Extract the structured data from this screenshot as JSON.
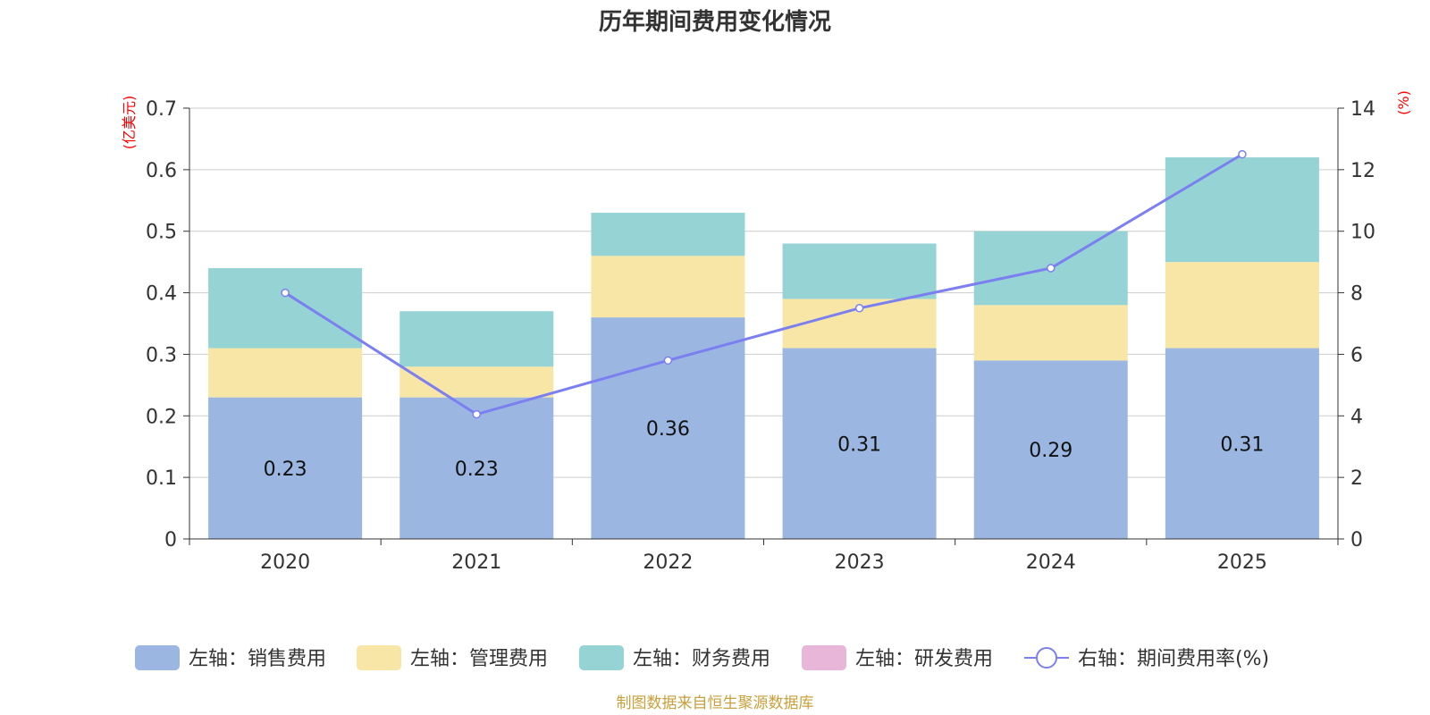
{
  "chart_data": {
    "type": "bar",
    "stacked": true,
    "title": "历年期间费用变化情况",
    "categories": [
      "2020",
      "2021",
      "2022",
      "2023",
      "2024",
      "2025"
    ],
    "left_axis": {
      "unit": "(亿美元)",
      "ylim": [
        0,
        0.7
      ],
      "ticks": [
        "0",
        "0.1",
        "0.2",
        "0.3",
        "0.4",
        "0.5",
        "0.6",
        "0.7"
      ]
    },
    "right_axis": {
      "unit": "(%)",
      "ylim": [
        0,
        14
      ],
      "ticks": [
        "0",
        "2",
        "4",
        "6",
        "8",
        "10",
        "12",
        "14"
      ]
    },
    "series": [
      {
        "name": "左轴：销售费用",
        "kind": "bar",
        "color": "#9bb7e1",
        "values": [
          0.23,
          0.23,
          0.36,
          0.31,
          0.29,
          0.31
        ],
        "labels": [
          "0.23",
          "0.23",
          "0.36",
          "0.31",
          "0.29",
          "0.31"
        ]
      },
      {
        "name": "左轴：管理费用",
        "kind": "bar",
        "color": "#f7e6a6",
        "values": [
          0.08,
          0.05,
          0.1,
          0.08,
          0.09,
          0.14
        ]
      },
      {
        "name": "左轴：财务费用",
        "kind": "bar",
        "color": "#96d3d4",
        "values": [
          0.13,
          0.09,
          0.07,
          0.09,
          0.12,
          0.17
        ]
      },
      {
        "name": "左轴：研发费用",
        "kind": "bar",
        "color": "#e7b6d8",
        "values": [
          0,
          0,
          0,
          0,
          0,
          0
        ]
      },
      {
        "name": "右轴：期间费用率(%)",
        "kind": "line",
        "axis": "right",
        "color": "#7b7ff0",
        "values": [
          8.0,
          4.05,
          5.8,
          7.5,
          8.8,
          12.5
        ]
      }
    ],
    "grid": true,
    "legend_position": "bottom"
  },
  "colors": {
    "axis_unit": "#ff0000",
    "source": "#c8a03c",
    "grid": "#cccccc",
    "axis": "#333333"
  },
  "footer": {
    "source": "制图数据来自恒生聚源数据库"
  }
}
